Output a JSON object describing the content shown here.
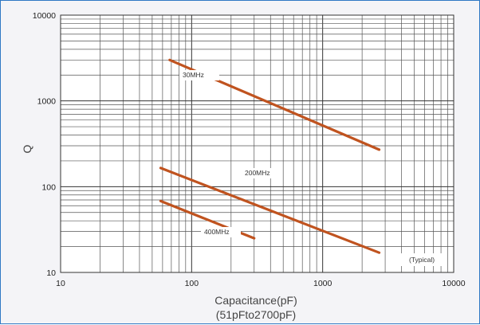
{
  "chart_data": {
    "type": "line",
    "xlabel": "Capacitance(pF)",
    "xlabel_sub": "(51pFto2700pF)",
    "ylabel": "Q",
    "xscale": "log",
    "yscale": "log",
    "xlim": [
      10,
      10000
    ],
    "ylim": [
      10,
      10000
    ],
    "x_ticks": [
      "10",
      "100",
      "1000",
      "10000"
    ],
    "y_ticks": [
      "10",
      "100",
      "1000",
      "10000"
    ],
    "grid": true,
    "note": "(Typical)",
    "series_color": "#c0531f",
    "series": [
      {
        "name": "30MHz",
        "x": [
          68,
          2700
        ],
        "y": [
          3000,
          270
        ]
      },
      {
        "name": "200MHz",
        "x": [
          58,
          2700
        ],
        "y": [
          165,
          17
        ]
      },
      {
        "name": "400MHz",
        "x": [
          58,
          300
        ],
        "y": [
          68,
          25
        ]
      }
    ]
  }
}
